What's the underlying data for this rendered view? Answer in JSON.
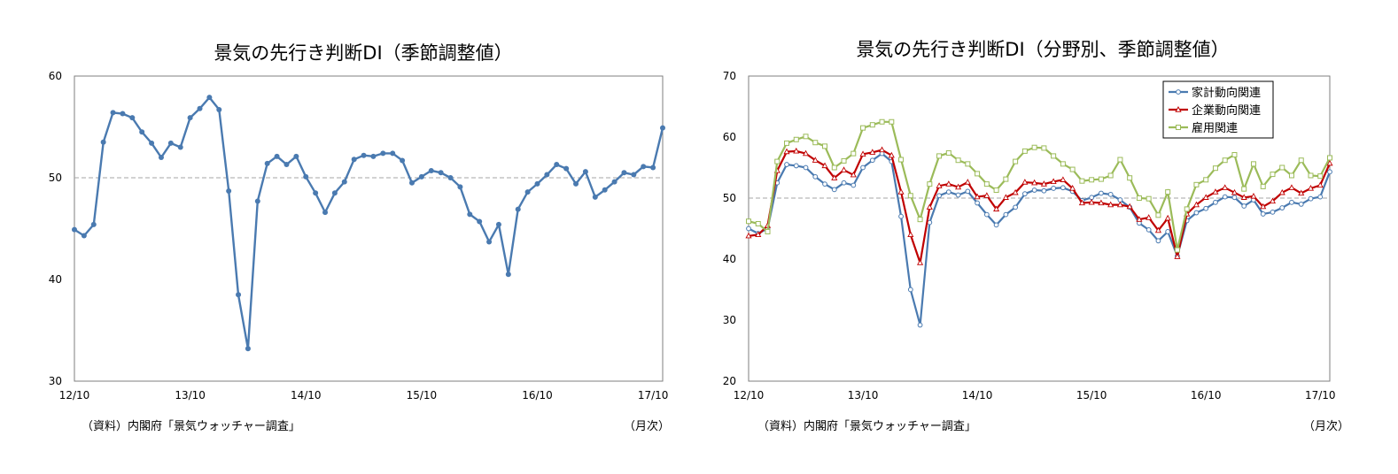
{
  "charts": [
    {
      "title": "景気の先行き判断DI（季節調整値）",
      "source": "（資料）内閣府「景気ウォッチャー調査」",
      "unit_note": "（月次）"
    },
    {
      "title": "景気の先行き判断DI（分野別、季節調整値）",
      "source": "（資料）内閣府「景気ウォッチャー調査」",
      "unit_note": "（月次）"
    }
  ],
  "chart_data": [
    {
      "type": "line",
      "title": "景気の先行き判断DI（季節調整値）",
      "xlabel": "",
      "ylabel": "",
      "ylim": [
        30,
        60
      ],
      "yticks": [
        30,
        40,
        50,
        60
      ],
      "xtick_labels": [
        "12/10",
        "13/10",
        "14/10",
        "15/10",
        "16/10",
        "17/10"
      ],
      "reference_line": 50,
      "grid": false,
      "series": [
        {
          "color": "#4a7ab0",
          "values": [
            44.9,
            44.3,
            45.4,
            53.5,
            56.4,
            56.3,
            55.9,
            54.5,
            53.4,
            52.0,
            53.4,
            53.0,
            55.9,
            56.8,
            57.9,
            56.7,
            48.7,
            38.5,
            33.2,
            47.7,
            51.4,
            52.1,
            51.3,
            52.1,
            50.1,
            48.5,
            46.6,
            48.5,
            49.6,
            51.8,
            52.2,
            52.1,
            52.4,
            52.4,
            51.7,
            49.5,
            50.1,
            50.7,
            50.5,
            50.0,
            49.1,
            46.4,
            45.7,
            43.7,
            45.4,
            40.5,
            46.9,
            48.6,
            49.4,
            50.3,
            51.3,
            50.9,
            49.4,
            50.6,
            48.1,
            48.8,
            49.6,
            50.5,
            50.3,
            51.1,
            51.0,
            54.9
          ]
        }
      ]
    },
    {
      "type": "line",
      "title": "景気の先行き判断DI（分野別、季節調整値）",
      "xlabel": "",
      "ylabel": "",
      "ylim": [
        20,
        70
      ],
      "yticks": [
        20,
        30,
        40,
        50,
        60,
        70
      ],
      "xtick_labels": [
        "12/10",
        "13/10",
        "14/10",
        "15/10",
        "16/10",
        "17/10"
      ],
      "reference_line": 50,
      "grid": false,
      "legend": "top-right",
      "series": [
        {
          "name": "家計動向関連",
          "color": "#4a7ab0",
          "marker": "circle",
          "values": [
            45.0,
            44.2,
            45.0,
            52.5,
            55.5,
            55.3,
            55.0,
            53.5,
            52.3,
            51.4,
            52.5,
            52.1,
            55.0,
            56.2,
            57.3,
            56.0,
            47.0,
            35.0,
            29.2,
            46.0,
            50.4,
            51.0,
            50.5,
            51.1,
            49.2,
            47.3,
            45.6,
            47.3,
            48.5,
            50.7,
            51.3,
            51.2,
            51.6,
            51.7,
            51.1,
            49.6,
            50.1,
            50.8,
            50.6,
            49.7,
            48.5,
            45.9,
            44.8,
            43.0,
            44.5,
            40.5,
            46.3,
            47.6,
            48.3,
            49.3,
            50.2,
            50.1,
            48.7,
            49.7,
            47.4,
            47.7,
            48.4,
            49.3,
            49.0,
            49.9,
            50.2,
            54.3
          ]
        },
        {
          "name": "企業動向関連",
          "color": "#c00000",
          "marker": "triangle",
          "values": [
            43.8,
            44.0,
            45.5,
            54.5,
            57.6,
            57.7,
            57.3,
            56.2,
            55.3,
            53.3,
            54.6,
            53.8,
            57.2,
            57.5,
            57.9,
            57.0,
            51.0,
            44.0,
            39.4,
            48.5,
            52.0,
            52.3,
            51.8,
            52.6,
            50.2,
            50.4,
            48.2,
            50.1,
            50.9,
            52.6,
            52.5,
            52.3,
            52.7,
            53.0,
            51.6,
            49.2,
            49.3,
            49.2,
            48.9,
            48.9,
            48.6,
            46.5,
            46.8,
            44.7,
            46.7,
            40.4,
            47.4,
            48.9,
            50.1,
            51.0,
            51.7,
            50.9,
            50.1,
            50.3,
            48.6,
            49.5,
            50.9,
            51.7,
            50.8,
            51.6,
            52.1,
            55.7
          ]
        },
        {
          "name": "雇用関連",
          "color": "#9bbb59",
          "marker": "square",
          "values": [
            46.2,
            45.8,
            44.5,
            56.0,
            59.0,
            59.6,
            60.1,
            59.1,
            58.5,
            55.0,
            56.1,
            57.3,
            61.5,
            62.0,
            62.5,
            62.5,
            56.3,
            50.4,
            46.5,
            52.3,
            56.9,
            57.4,
            56.2,
            55.6,
            54.0,
            52.3,
            51.3,
            53.1,
            56.0,
            57.7,
            58.3,
            58.2,
            56.9,
            55.6,
            54.7,
            52.8,
            53.0,
            53.1,
            53.7,
            56.3,
            53.3,
            50.0,
            49.9,
            47.2,
            51.0,
            41.5,
            48.2,
            52.2,
            53.0,
            54.9,
            56.2,
            57.1,
            51.5,
            55.6,
            51.9,
            53.9,
            55.0,
            53.7,
            56.2,
            53.7,
            53.6,
            56.6
          ]
        }
      ]
    }
  ]
}
